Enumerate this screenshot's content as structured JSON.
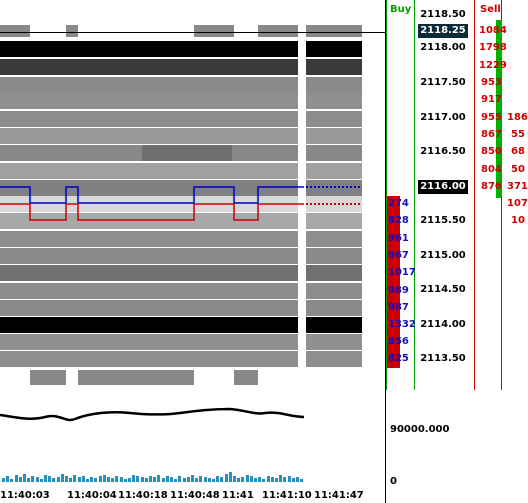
{
  "columns": {
    "buy_label": "Buy",
    "sell_label": "Sell"
  },
  "ladder": {
    "prices": [
      "2118.50",
      "2118.25",
      "2118.00",
      "2117.50",
      "2117.00",
      "2116.50",
      "2116.00",
      "2115.50",
      "2115.00",
      "2114.50",
      "2114.00",
      "2113.50"
    ],
    "last_price": "2118.25",
    "current_price": "2116.00"
  },
  "sell_column_1": [
    "1084",
    "1798",
    "1229",
    "953",
    "917",
    "955",
    "867",
    "850",
    "804",
    "876"
  ],
  "sell_column_2": [
    "186",
    "55",
    "68",
    "50",
    "371",
    "107",
    "10"
  ],
  "bid_sizes": [
    "274",
    "828",
    "961",
    "967",
    "1017",
    "989",
    "987",
    "1332",
    "856",
    "825"
  ],
  "time_axis": [
    "11:40:03",
    "11:40:04",
    "11:40:18",
    "11:40:48",
    "11:41",
    "11:41:10",
    "11:41:47"
  ],
  "indicator": {
    "value_label": "90000.000",
    "zero_label": "0"
  },
  "colors": {
    "buy_bar": "#00b000",
    "sell_bar": "#cc0000",
    "ask_line": "#0000cc",
    "bid_line": "#cc0000"
  }
}
